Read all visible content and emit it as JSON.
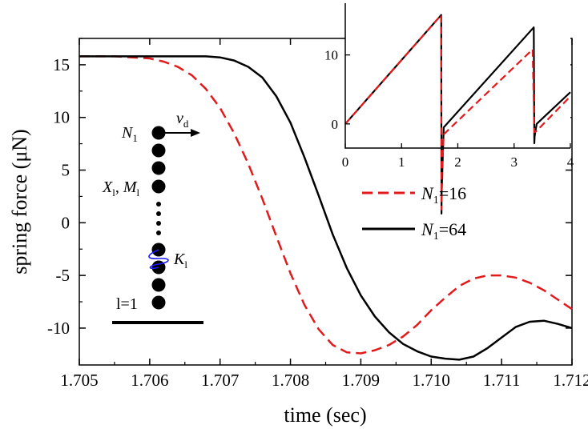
{
  "chart_data": {
    "type": "line",
    "xlabel": "time (sec)",
    "ylabel": "spring force (μN)",
    "xlim": [
      1.705,
      1.712
    ],
    "ylim": [
      -13.5,
      17.5
    ],
    "x_ticks": [
      "1.705",
      "1.706",
      "1.707",
      "1.708",
      "1.709",
      "1.710",
      "1.711",
      "1.712"
    ],
    "y_ticks": [
      "-10",
      "-5",
      "0",
      "5",
      "10",
      "15"
    ],
    "grid": false,
    "legend_position": "right",
    "legend": [
      "N1=16",
      "N1=64"
    ],
    "series": [
      {
        "name": "N1=16",
        "color": "#e31a1c",
        "dash": "dashed",
        "x": [
          1.705,
          1.7055,
          1.706,
          1.7062,
          1.7064,
          1.7066,
          1.7068,
          1.707,
          1.7072,
          1.7074,
          1.7076,
          1.7078,
          1.708,
          1.7082,
          1.7084,
          1.7086,
          1.7088,
          1.709,
          1.7092,
          1.7094,
          1.7096,
          1.7098,
          1.71,
          1.7102,
          1.7104,
          1.7106,
          1.7108,
          1.711,
          1.7112,
          1.7114,
          1.7116,
          1.7118,
          1.712
        ],
        "y": [
          15.8,
          15.8,
          15.6,
          15.3,
          14.8,
          14.0,
          12.7,
          10.9,
          8.5,
          5.6,
          2.3,
          -1.3,
          -4.8,
          -7.8,
          -10.1,
          -11.6,
          -12.3,
          -12.4,
          -12.1,
          -11.6,
          -10.8,
          -9.7,
          -8.3,
          -7.1,
          -6.0,
          -5.3,
          -5.0,
          -5.0,
          -5.2,
          -5.7,
          -6.4,
          -7.3,
          -8.2
        ]
      },
      {
        "name": "N1=64",
        "color": "#000000",
        "dash": "solid",
        "x": [
          1.705,
          1.706,
          1.7068,
          1.707,
          1.7072,
          1.7074,
          1.7076,
          1.7078,
          1.708,
          1.7082,
          1.7084,
          1.7086,
          1.7088,
          1.709,
          1.7092,
          1.7094,
          1.7096,
          1.7098,
          1.71,
          1.7102,
          1.7104,
          1.7106,
          1.7108,
          1.711,
          1.7112,
          1.7114,
          1.7116,
          1.7118,
          1.712
        ],
        "y": [
          15.8,
          15.8,
          15.8,
          15.7,
          15.4,
          14.8,
          13.8,
          12.0,
          9.5,
          6.2,
          2.6,
          -1.1,
          -4.3,
          -6.9,
          -8.9,
          -10.4,
          -11.5,
          -12.2,
          -12.7,
          -12.9,
          -13.0,
          -12.7,
          -11.9,
          -10.9,
          -9.9,
          -9.4,
          -9.3,
          -9.6,
          -10.0
        ]
      }
    ],
    "inset": {
      "type": "line",
      "xlim": [
        0,
        4
      ],
      "ylim": [
        -3.5,
        17.5
      ],
      "x_ticks": [
        "0",
        "1",
        "2",
        "3",
        "4"
      ],
      "y_ticks": [
        "0",
        "10"
      ],
      "series": [
        {
          "name": "N1=16",
          "color": "#e31a1c",
          "dash": "dashed",
          "x": [
            0,
            1.705,
            1.709,
            1.712,
            1.75,
            3.33,
            3.36,
            3.362,
            3.4,
            4.0
          ],
          "y": [
            0,
            15.8,
            -12.4,
            -8.2,
            -1.5,
            10.8,
            -1.0,
            -1.2,
            -1.0,
            4.0
          ]
        },
        {
          "name": "N1=64",
          "color": "#000000",
          "dash": "solid",
          "x": [
            0,
            1.706,
            1.71,
            1.712,
            1.75,
            3.35,
            3.36,
            3.365,
            3.4,
            4.0
          ],
          "y": [
            0,
            15.8,
            -13.0,
            -10.0,
            -0.5,
            14.0,
            -2.8,
            -1.8,
            0.0,
            4.6
          ]
        }
      ]
    }
  },
  "diagram": {
    "label_n1": "N",
    "label_n1_sub": "1",
    "label_vd": "v",
    "label_vd_sub": "d",
    "label_xm_x": "X",
    "label_xm_sub": "l",
    "label_xm_sep": ", ",
    "label_xm_m": "M",
    "label_xm_m_sub": "l",
    "label_k": "K",
    "label_k_sub": "l",
    "label_l1": "l=1",
    "spring_color": "#1a1aff"
  }
}
